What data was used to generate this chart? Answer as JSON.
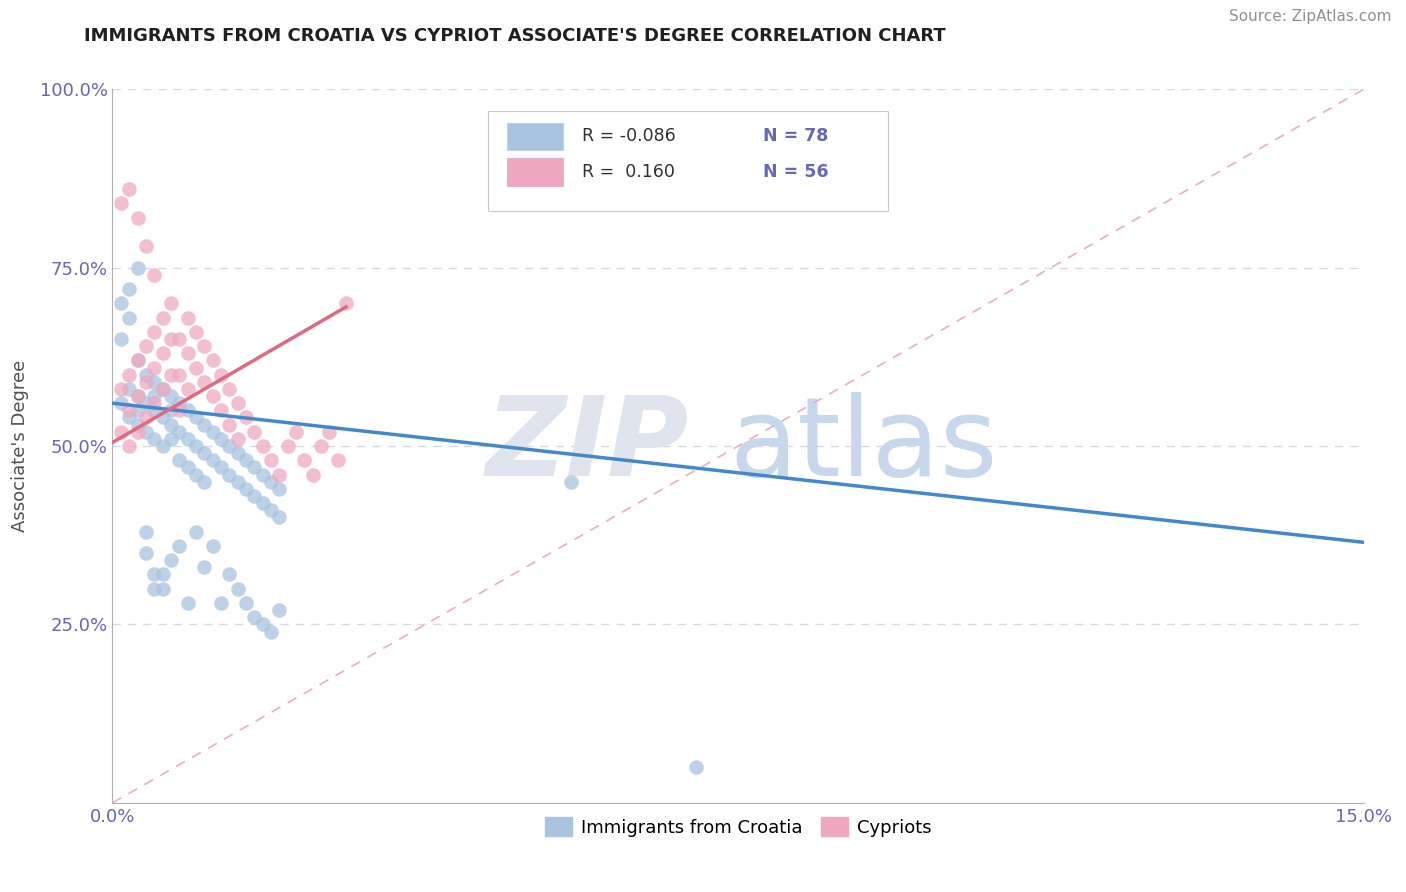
{
  "title": "IMMIGRANTS FROM CROATIA VS CYPRIOT ASSOCIATE'S DEGREE CORRELATION CHART",
  "source": "Source: ZipAtlas.com",
  "ylabel": "Associate's Degree",
  "xlim": [
    0.0,
    0.15
  ],
  "ylim": [
    0.0,
    1.0
  ],
  "xticklabels": [
    "0.0%",
    "15.0%"
  ],
  "ytick_vals": [
    0.25,
    0.5,
    0.75,
    1.0
  ],
  "yticklabels": [
    "25.0%",
    "50.0%",
    "75.0%",
    "100.0%"
  ],
  "legend_r_blue": "-0.086",
  "legend_n_blue": "78",
  "legend_r_pink": "0.160",
  "legend_n_pink": "56",
  "blue_color": "#a8c4e0",
  "pink_color": "#f0a8c0",
  "blue_line_color": "#4488cc",
  "pink_line_color": "#e06880",
  "diag_line_color": "#e8b0b8",
  "legend_label_blue": "Immigrants from Croatia",
  "legend_label_pink": "Cypriots",
  "tick_color": "#6666bb",
  "blue_line_x0": 0.0,
  "blue_line_y0": 0.56,
  "blue_line_x1": 0.15,
  "blue_line_y1": 0.365,
  "pink_line_x0": 0.0,
  "pink_line_y0": 0.505,
  "pink_line_x1": 0.028,
  "pink_line_y1": 0.695,
  "blue_scatter_x": [
    0.001,
    0.002,
    0.002,
    0.003,
    0.003,
    0.003,
    0.004,
    0.004,
    0.004,
    0.005,
    0.005,
    0.005,
    0.005,
    0.006,
    0.006,
    0.006,
    0.007,
    0.007,
    0.007,
    0.007,
    0.008,
    0.008,
    0.008,
    0.009,
    0.009,
    0.009,
    0.01,
    0.01,
    0.01,
    0.011,
    0.011,
    0.011,
    0.012,
    0.012,
    0.013,
    0.013,
    0.014,
    0.014,
    0.015,
    0.015,
    0.016,
    0.016,
    0.017,
    0.017,
    0.018,
    0.018,
    0.019,
    0.019,
    0.02,
    0.02,
    0.001,
    0.001,
    0.002,
    0.002,
    0.003,
    0.003,
    0.004,
    0.004,
    0.005,
    0.005,
    0.006,
    0.006,
    0.007,
    0.008,
    0.009,
    0.01,
    0.011,
    0.012,
    0.013,
    0.014,
    0.015,
    0.016,
    0.017,
    0.018,
    0.019,
    0.02,
    0.055,
    0.07
  ],
  "blue_scatter_y": [
    0.56,
    0.58,
    0.54,
    0.57,
    0.55,
    0.53,
    0.6,
    0.56,
    0.52,
    0.59,
    0.55,
    0.51,
    0.57,
    0.54,
    0.5,
    0.58,
    0.55,
    0.51,
    0.57,
    0.53,
    0.56,
    0.52,
    0.48,
    0.55,
    0.51,
    0.47,
    0.54,
    0.5,
    0.46,
    0.53,
    0.49,
    0.45,
    0.52,
    0.48,
    0.51,
    0.47,
    0.5,
    0.46,
    0.49,
    0.45,
    0.48,
    0.44,
    0.47,
    0.43,
    0.46,
    0.42,
    0.45,
    0.41,
    0.44,
    0.4,
    0.65,
    0.7,
    0.72,
    0.68,
    0.75,
    0.62,
    0.38,
    0.35,
    0.32,
    0.3,
    0.32,
    0.3,
    0.34,
    0.36,
    0.28,
    0.38,
    0.33,
    0.36,
    0.28,
    0.32,
    0.3,
    0.28,
    0.26,
    0.25,
    0.24,
    0.27,
    0.45,
    0.05
  ],
  "pink_scatter_x": [
    0.001,
    0.001,
    0.002,
    0.002,
    0.002,
    0.003,
    0.003,
    0.003,
    0.004,
    0.004,
    0.004,
    0.005,
    0.005,
    0.005,
    0.006,
    0.006,
    0.006,
    0.007,
    0.007,
    0.007,
    0.008,
    0.008,
    0.008,
    0.009,
    0.009,
    0.009,
    0.01,
    0.01,
    0.011,
    0.011,
    0.012,
    0.012,
    0.013,
    0.013,
    0.014,
    0.014,
    0.015,
    0.015,
    0.016,
    0.017,
    0.018,
    0.019,
    0.02,
    0.021,
    0.022,
    0.023,
    0.024,
    0.025,
    0.026,
    0.027,
    0.028,
    0.001,
    0.002,
    0.003,
    0.004,
    0.005
  ],
  "pink_scatter_y": [
    0.58,
    0.52,
    0.6,
    0.55,
    0.5,
    0.62,
    0.57,
    0.52,
    0.64,
    0.59,
    0.54,
    0.66,
    0.61,
    0.56,
    0.68,
    0.63,
    0.58,
    0.7,
    0.65,
    0.6,
    0.65,
    0.6,
    0.55,
    0.68,
    0.63,
    0.58,
    0.66,
    0.61,
    0.64,
    0.59,
    0.62,
    0.57,
    0.6,
    0.55,
    0.58,
    0.53,
    0.56,
    0.51,
    0.54,
    0.52,
    0.5,
    0.48,
    0.46,
    0.5,
    0.52,
    0.48,
    0.46,
    0.5,
    0.52,
    0.48,
    0.7,
    0.84,
    0.86,
    0.82,
    0.78,
    0.74
  ]
}
